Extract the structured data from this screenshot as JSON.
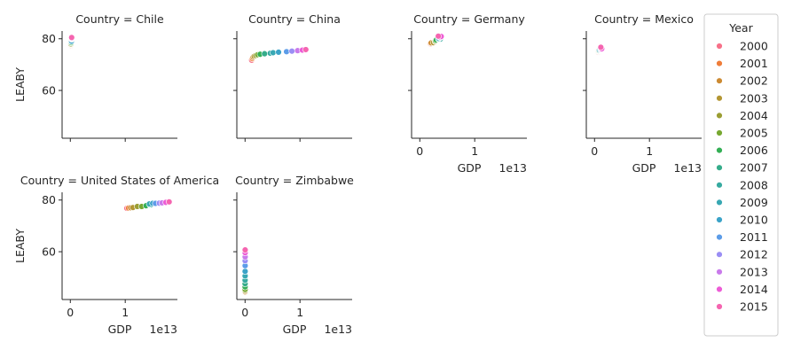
{
  "chart_data": {
    "type": "scatter",
    "xlabel": "GDP",
    "ylabel": "LEABY",
    "x_offset_text": "1e13",
    "x_ticks": [
      0,
      1
    ],
    "y_ticks": [
      60,
      80
    ],
    "xlim": [
      -0.15,
      1.95
    ],
    "ylim": [
      41.5,
      83
    ],
    "x_unit": "1e13",
    "legend": {
      "title": "Year",
      "placement": "right",
      "entries": [
        {
          "label": "2000",
          "color": "#f77189"
        },
        {
          "label": "2001",
          "color": "#ef7d39"
        },
        {
          "label": "2002",
          "color": "#cc8a32"
        },
        {
          "label": "2003",
          "color": "#b39633"
        },
        {
          "label": "2004",
          "color": "#9b9e33"
        },
        {
          "label": "2005",
          "color": "#77a831"
        },
        {
          "label": "2006",
          "color": "#34af55"
        },
        {
          "label": "2007",
          "color": "#35ac8a"
        },
        {
          "label": "2008",
          "color": "#36aaa0"
        },
        {
          "label": "2009",
          "color": "#38a8b3"
        },
        {
          "label": "2010",
          "color": "#3ba3c8"
        },
        {
          "label": "2011",
          "color": "#5c9ce8"
        },
        {
          "label": "2012",
          "color": "#9a8ef4"
        },
        {
          "label": "2013",
          "color": "#c97aeb"
        },
        {
          "label": "2014",
          "color": "#ed5cd6"
        },
        {
          "label": "2015",
          "color": "#f565b0"
        }
      ]
    },
    "panels": [
      {
        "title": "Country = Chile",
        "show_ylabel": true,
        "show_xlabel": false,
        "x": [
          0.0078,
          0.007,
          0.007,
          0.0076,
          0.0099,
          0.0123,
          0.0155,
          0.0173,
          0.018,
          0.0172,
          0.0218,
          0.0252,
          0.0267,
          0.0278,
          0.0261,
          0.0243
        ],
        "y": [
          77.3,
          77.5,
          77.7,
          77.9,
          78.0,
          78.4,
          78.5,
          78.9,
          79.6,
          79.3,
          79.1,
          79.8,
          79.9,
          80.1,
          80.3,
          80.5
        ]
      },
      {
        "title": "Country = China",
        "show_ylabel": false,
        "show_xlabel": false,
        "x": [
          0.121,
          0.134,
          0.147,
          0.166,
          0.196,
          0.229,
          0.275,
          0.355,
          0.459,
          0.51,
          0.61,
          0.755,
          0.853,
          0.957,
          1.044,
          1.106
        ],
        "y": [
          71.7,
          72.3,
          72.8,
          73.2,
          73.5,
          73.8,
          74.0,
          74.2,
          74.4,
          74.6,
          74.8,
          75.0,
          75.2,
          75.4,
          75.6,
          75.8
        ]
      },
      {
        "title": "Country = Germany",
        "show_ylabel": false,
        "show_xlabel": true,
        "x": [
          0.195,
          0.195,
          0.208,
          0.25,
          0.282,
          0.286,
          0.3,
          0.344,
          0.375,
          0.342,
          0.342,
          0.375,
          0.354,
          0.373,
          0.389,
          0.337
        ],
        "y": [
          78.0,
          78.3,
          78.4,
          78.5,
          78.9,
          79.2,
          79.5,
          79.8,
          79.9,
          80.0,
          80.1,
          80.5,
          80.6,
          80.6,
          80.9,
          81.0
        ]
      },
      {
        "title": "Country = Mexico",
        "show_ylabel": false,
        "show_xlabel": true,
        "x": [
          0.0683,
          0.0725,
          0.0741,
          0.0713,
          0.077,
          0.0866,
          0.0966,
          0.1043,
          0.1101,
          0.0894,
          0.1051,
          0.1171,
          0.1187,
          0.1262,
          0.1298,
          0.1144
        ],
        "y": [
          74.8,
          75.0,
          75.1,
          75.2,
          75.3,
          75.3,
          75.4,
          75.5,
          75.6,
          75.6,
          75.7,
          75.8,
          75.9,
          76.0,
          76.1,
          76.7
        ]
      },
      {
        "title": "Country = United States of America",
        "show_ylabel": true,
        "show_xlabel": true,
        "x": [
          1.03,
          1.06,
          1.1,
          1.14,
          1.22,
          1.3,
          1.38,
          1.45,
          1.47,
          1.44,
          1.5,
          1.55,
          1.62,
          1.67,
          1.74,
          1.8
        ],
        "y": [
          76.8,
          76.9,
          77.0,
          77.1,
          77.5,
          77.5,
          77.8,
          78.1,
          78.2,
          78.5,
          78.7,
          78.7,
          78.8,
          78.9,
          79.1,
          79.3
        ]
      },
      {
        "title": "Country = Zimbabwe",
        "show_ylabel": false,
        "show_xlabel": true,
        "x": [
          0.00067,
          0.00068,
          0.00064,
          0.00056,
          0.00054,
          0.00057,
          0.00054,
          0.00052,
          0.00044,
          0.0009,
          0.00103,
          0.00123,
          0.0014,
          0.00155,
          0.00159,
          0.00163
        ],
        "y": [
          45.1,
          44.3,
          44.5,
          44.8,
          45.3,
          45.4,
          46.4,
          47.6,
          49.0,
          50.6,
          52.4,
          54.6,
          56.5,
          58.0,
          59.6,
          60.7
        ]
      }
    ]
  }
}
